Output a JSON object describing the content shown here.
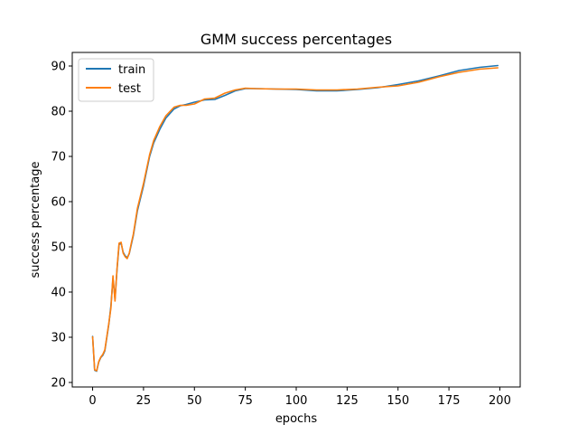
{
  "chart_data": {
    "type": "line",
    "title": "GMM success percentages",
    "xlabel": "epochs",
    "ylabel": "success percentage",
    "xlim": [
      -10,
      210
    ],
    "ylim": [
      19,
      93
    ],
    "xticks": [
      0,
      25,
      50,
      75,
      100,
      125,
      150,
      175,
      200
    ],
    "yticks": [
      20,
      30,
      40,
      50,
      60,
      70,
      80,
      90
    ],
    "grid": false,
    "legend": "top-left",
    "series": [
      {
        "name": "train",
        "color": "#1f77b4",
        "points": [
          [
            0,
            30.2
          ],
          [
            1,
            22.7
          ],
          [
            2,
            22.5
          ],
          [
            3,
            24.5
          ],
          [
            4,
            25.5
          ],
          [
            5,
            26.0
          ],
          [
            6,
            27.0
          ],
          [
            7,
            30.0
          ],
          [
            8,
            33.0
          ],
          [
            9,
            37.0
          ],
          [
            10,
            43.0
          ],
          [
            11,
            38.5
          ],
          [
            12,
            45.0
          ],
          [
            13,
            50.5
          ],
          [
            14,
            50.8
          ],
          [
            15,
            48.8
          ],
          [
            16,
            48.0
          ],
          [
            17,
            47.6
          ],
          [
            18,
            48.5
          ],
          [
            19,
            50.5
          ],
          [
            20,
            52.5
          ],
          [
            22,
            58.0
          ],
          [
            25,
            63.5
          ],
          [
            28,
            70.0
          ],
          [
            30,
            73.0
          ],
          [
            33,
            76.0
          ],
          [
            36,
            78.5
          ],
          [
            40,
            80.5
          ],
          [
            43,
            81.2
          ],
          [
            46,
            81.5
          ],
          [
            50,
            82.0
          ],
          [
            55,
            82.5
          ],
          [
            60,
            82.6
          ],
          [
            65,
            83.5
          ],
          [
            70,
            84.5
          ],
          [
            75,
            85.0
          ],
          [
            80,
            85.0
          ],
          [
            90,
            84.9
          ],
          [
            100,
            84.8
          ],
          [
            110,
            84.5
          ],
          [
            120,
            84.5
          ],
          [
            130,
            84.8
          ],
          [
            140,
            85.2
          ],
          [
            150,
            85.9
          ],
          [
            160,
            86.7
          ],
          [
            170,
            87.8
          ],
          [
            180,
            89.0
          ],
          [
            190,
            89.7
          ],
          [
            199,
            90.1
          ]
        ]
      },
      {
        "name": "test",
        "color": "#ff7f0e",
        "points": [
          [
            0,
            30.1
          ],
          [
            1,
            22.8
          ],
          [
            2,
            22.6
          ],
          [
            3,
            24.6
          ],
          [
            4,
            25.6
          ],
          [
            5,
            26.2
          ],
          [
            6,
            27.2
          ],
          [
            7,
            30.2
          ],
          [
            8,
            33.2
          ],
          [
            9,
            36.5
          ],
          [
            10,
            43.6
          ],
          [
            11,
            38.0
          ],
          [
            12,
            45.3
          ],
          [
            13,
            50.8
          ],
          [
            14,
            51.0
          ],
          [
            15,
            48.6
          ],
          [
            16,
            47.8
          ],
          [
            17,
            47.4
          ],
          [
            18,
            48.6
          ],
          [
            19,
            50.8
          ],
          [
            20,
            52.8
          ],
          [
            22,
            58.5
          ],
          [
            25,
            64.0
          ],
          [
            28,
            70.4
          ],
          [
            30,
            73.5
          ],
          [
            33,
            76.6
          ],
          [
            36,
            79.0
          ],
          [
            40,
            80.9
          ],
          [
            43,
            81.3
          ],
          [
            46,
            81.3
          ],
          [
            50,
            81.6
          ],
          [
            55,
            82.7
          ],
          [
            60,
            82.9
          ],
          [
            65,
            84.0
          ],
          [
            70,
            84.7
          ],
          [
            75,
            85.1
          ],
          [
            80,
            85.0
          ],
          [
            90,
            84.9
          ],
          [
            100,
            84.9
          ],
          [
            110,
            84.7
          ],
          [
            120,
            84.7
          ],
          [
            130,
            84.9
          ],
          [
            140,
            85.3
          ],
          [
            150,
            85.6
          ],
          [
            160,
            86.4
          ],
          [
            170,
            87.6
          ],
          [
            180,
            88.6
          ],
          [
            190,
            89.3
          ],
          [
            199,
            89.6
          ]
        ]
      }
    ]
  }
}
